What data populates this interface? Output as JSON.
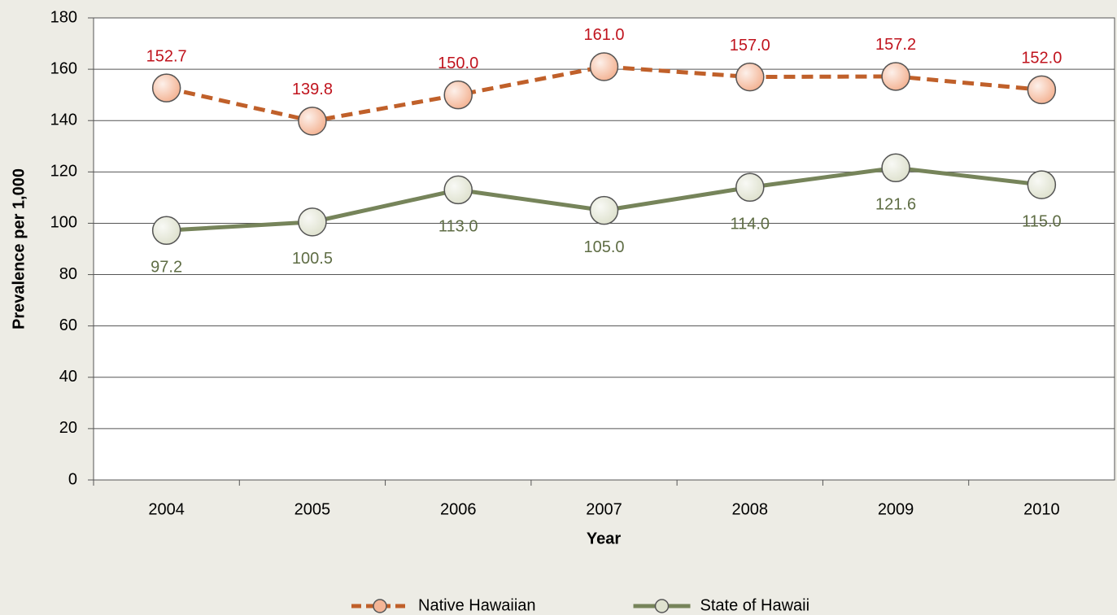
{
  "chart_data": {
    "type": "line",
    "categories": [
      "2004",
      "2005",
      "2006",
      "2007",
      "2008",
      "2009",
      "2010"
    ],
    "x_label": "Year",
    "y_label": "Prevalence per 1,000",
    "ylim": [
      0,
      180
    ],
    "yticks": [
      0,
      20,
      40,
      60,
      80,
      100,
      120,
      140,
      160,
      180
    ],
    "grid": true,
    "legend": "bottom",
    "series": [
      {
        "name": "Native Hawaiian",
        "color": "#c0602a",
        "marker_color": "#f4b596",
        "label_color": "#c0141e",
        "dashed": true,
        "label_position": "above",
        "values": [
          152.7,
          139.8,
          150.0,
          161.0,
          157.0,
          157.2,
          152.0
        ],
        "value_labels": [
          "152.7",
          "139.8",
          "150.0",
          "161.0",
          "157.0",
          "157.2",
          "152.0"
        ]
      },
      {
        "name": "State of Hawaii",
        "color": "#76845a",
        "marker_color": "#dfe2cf",
        "label_color": "#5f6d45",
        "dashed": false,
        "label_position": "below",
        "values": [
          97.2,
          100.5,
          113.0,
          105.0,
          114.0,
          121.6,
          115.0
        ],
        "value_labels": [
          "97.2",
          "100.5",
          "113.0",
          "105.0",
          "114.0",
          "121.6",
          "115.0"
        ]
      }
    ]
  }
}
